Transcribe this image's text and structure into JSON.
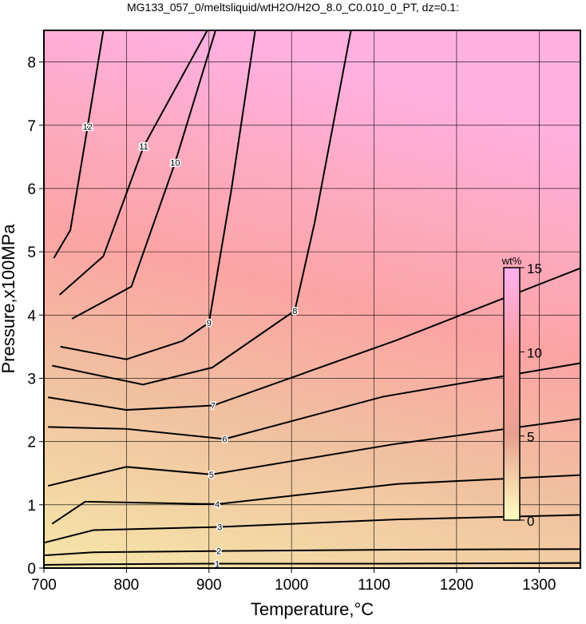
{
  "chart_data": {
    "type": "contour",
    "title": "MG133_057_0/meltsliquid/wtH2O/H2O_8.0_C0.010_0_PT, dz=0.1:",
    "x_label": "Temperature,°C",
    "y_label": "Pressure,x100MPa",
    "xlim": [
      700,
      1350
    ],
    "ylim": [
      0,
      8.5
    ],
    "xticks": [
      700,
      800,
      900,
      1000,
      1100,
      1200,
      1300
    ],
    "yticks": [
      0,
      1,
      2,
      3,
      4,
      5,
      6,
      7,
      8
    ],
    "grid": true,
    "contours": [
      {
        "level": 1,
        "T": [
          700,
          760,
          910,
          1125,
          1350
        ],
        "P": [
          0.05,
          0.06,
          0.07,
          0.07,
          0.08
        ]
      },
      {
        "level": 2,
        "T": [
          700,
          760,
          912,
          1125,
          1350
        ],
        "P": [
          0.2,
          0.25,
          0.27,
          0.29,
          0.3
        ]
      },
      {
        "level": 3,
        "T": [
          700,
          760,
          913,
          1130,
          1350
        ],
        "P": [
          0.4,
          0.6,
          0.65,
          0.77,
          0.84
        ]
      },
      {
        "level": 4,
        "T": [
          710,
          750,
          910,
          1128,
          1350
        ],
        "P": [
          0.7,
          1.05,
          1.01,
          1.33,
          1.47
        ]
      },
      {
        "level": 5,
        "T": [
          705,
          800,
          903,
          1125,
          1350
        ],
        "P": [
          1.3,
          1.6,
          1.48,
          1.96,
          2.36
        ]
      },
      {
        "level": 6,
        "T": [
          705,
          800,
          919,
          1111,
          1350
        ],
        "P": [
          2.23,
          2.2,
          2.04,
          2.71,
          3.24
        ]
      },
      {
        "level": 7,
        "T": [
          705,
          800,
          905,
          1127,
          1350
        ],
        "P": [
          2.7,
          2.5,
          2.57,
          3.6,
          4.74
        ]
      },
      {
        "level": 8,
        "T": [
          710,
          820,
          904,
          1004,
          1028,
          1072
        ],
        "P": [
          3.2,
          2.9,
          3.17,
          4.07,
          5.46,
          8.5
        ]
      },
      {
        "level": 9,
        "T": [
          720,
          800,
          868,
          900,
          927,
          956
        ],
        "P": [
          3.5,
          3.3,
          3.59,
          3.88,
          5.97,
          8.5
        ]
      },
      {
        "level": 10,
        "T": [
          734,
          806,
          859,
          908
        ],
        "P": [
          3.94,
          4.45,
          6.41,
          8.5
        ]
      },
      {
        "level": 11,
        "T": [
          719,
          772,
          821,
          898
        ],
        "P": [
          4.32,
          4.93,
          6.67,
          8.5
        ]
      },
      {
        "level": 12,
        "T": [
          712,
          732,
          753,
          772
        ],
        "P": [
          4.9,
          5.34,
          6.98,
          8.5
        ]
      }
    ],
    "colorbar": {
      "label": "wt%",
      "lim": [
        0,
        15
      ],
      "ticks": [
        0,
        5,
        10,
        15
      ],
      "colors": [
        "#ffffc0",
        "#e8a090",
        "#ff9fa0",
        "#ffb0f0"
      ]
    }
  }
}
